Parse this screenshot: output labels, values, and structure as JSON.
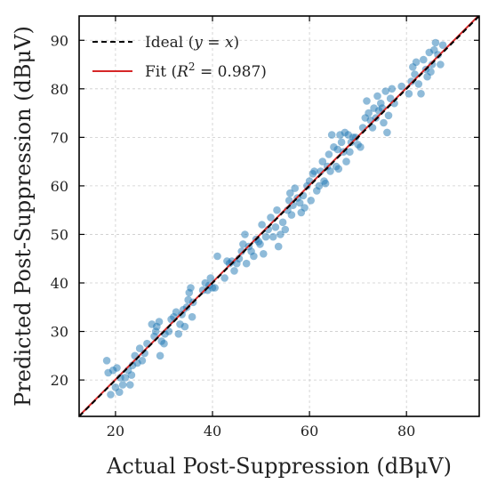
{
  "chart_data": {
    "type": "scatter",
    "xlabel": "Actual Post-Suppression (dBμV)",
    "ylabel": "Predicted Post-Suppression (dBμV)",
    "xlim": [
      12.5,
      95
    ],
    "ylim": [
      12.5,
      95
    ],
    "xticks": [
      20,
      40,
      60,
      80
    ],
    "yticks": [
      20,
      30,
      40,
      50,
      60,
      70,
      80,
      90
    ],
    "xtick_labels": [
      "20",
      "40",
      "60",
      "80"
    ],
    "ytick_labels": [
      "20",
      "30",
      "40",
      "50",
      "60",
      "70",
      "80",
      "90"
    ],
    "grid": true,
    "legend_position": "top-left",
    "legend": [
      {
        "label": "Ideal (y = x)",
        "style": "dashed",
        "color": "#000000"
      },
      {
        "label": "Fit (R² = 0.987)",
        "style": "solid",
        "color": "#d62728"
      }
    ],
    "ideal_line": {
      "x": [
        12.5,
        95
      ],
      "y": [
        12.5,
        95
      ],
      "color": "#000000"
    },
    "fit_line": {
      "x": [
        12.5,
        95
      ],
      "y": [
        12.6,
        95.2
      ],
      "color": "#d62728",
      "r_squared": 0.987
    },
    "point_color": "#1f77b4",
    "points": [
      [
        18.2,
        24.0
      ],
      [
        18.5,
        21.5
      ],
      [
        19.0,
        17.0
      ],
      [
        19.5,
        22.0
      ],
      [
        20.0,
        18.5
      ],
      [
        20.3,
        22.5
      ],
      [
        20.8,
        17.5
      ],
      [
        21.0,
        20.5
      ],
      [
        21.5,
        19.0
      ],
      [
        22.0,
        20.5
      ],
      [
        22.6,
        22.0
      ],
      [
        23.0,
        19.0
      ],
      [
        23.3,
        21.0
      ],
      [
        23.5,
        23.0
      ],
      [
        24.0,
        25.0
      ],
      [
        24.5,
        23.5
      ],
      [
        25.0,
        26.5
      ],
      [
        25.5,
        24.0
      ],
      [
        26.0,
        25.5
      ],
      [
        26.5,
        27.5
      ],
      [
        27.5,
        31.5
      ],
      [
        28.0,
        29.0
      ],
      [
        28.3,
        30.0
      ],
      [
        28.5,
        31.0
      ],
      [
        29.0,
        32.0
      ],
      [
        29.2,
        25.0
      ],
      [
        29.5,
        28.0
      ],
      [
        30.0,
        27.5
      ],
      [
        30.2,
        29.5
      ],
      [
        31.0,
        30.0
      ],
      [
        31.5,
        32.5
      ],
      [
        32.0,
        33.0
      ],
      [
        32.5,
        34.0
      ],
      [
        33.0,
        29.5
      ],
      [
        33.3,
        31.5
      ],
      [
        33.7,
        33.5
      ],
      [
        34.0,
        34.5
      ],
      [
        34.3,
        31.0
      ],
      [
        34.7,
        35.0
      ],
      [
        35.0,
        36.5
      ],
      [
        35.2,
        38.0
      ],
      [
        35.5,
        39.0
      ],
      [
        35.8,
        33.0
      ],
      [
        36.0,
        36.0
      ],
      [
        38.0,
        38.5
      ],
      [
        38.5,
        40.0
      ],
      [
        39.0,
        38.5
      ],
      [
        39.3,
        39.5
      ],
      [
        39.6,
        41.0
      ],
      [
        40.0,
        39.0
      ],
      [
        40.5,
        39.0
      ],
      [
        41.0,
        45.5
      ],
      [
        42.5,
        41.0
      ],
      [
        43.0,
        44.5
      ],
      [
        43.5,
        44.0
      ],
      [
        44.0,
        44.5
      ],
      [
        44.5,
        42.5
      ],
      [
        45.0,
        44.0
      ],
      [
        45.5,
        45.0
      ],
      [
        46.0,
        46.5
      ],
      [
        46.3,
        48.0
      ],
      [
        46.7,
        50.0
      ],
      [
        47.0,
        44.0
      ],
      [
        47.5,
        47.5
      ],
      [
        48.0,
        46.5
      ],
      [
        48.5,
        45.5
      ],
      [
        49.0,
        49.0
      ],
      [
        49.5,
        48.5
      ],
      [
        49.8,
        48.0
      ],
      [
        50.2,
        52.0
      ],
      [
        50.5,
        46.0
      ],
      [
        51.0,
        49.5
      ],
      [
        51.5,
        51.0
      ],
      [
        52.0,
        53.5
      ],
      [
        52.5,
        49.5
      ],
      [
        53.0,
        51.5
      ],
      [
        53.3,
        55.0
      ],
      [
        53.6,
        47.5
      ],
      [
        54.0,
        50.0
      ],
      [
        54.5,
        52.5
      ],
      [
        55.0,
        51.0
      ],
      [
        55.5,
        55.0
      ],
      [
        55.8,
        57.0
      ],
      [
        56.0,
        58.5
      ],
      [
        56.3,
        54.0
      ],
      [
        56.6,
        56.0
      ],
      [
        57.0,
        59.5
      ],
      [
        57.5,
        57.5
      ],
      [
        58.0,
        56.5
      ],
      [
        58.3,
        54.5
      ],
      [
        58.7,
        58.0
      ],
      [
        59.0,
        55.5
      ],
      [
        59.5,
        60.0
      ],
      [
        60.0,
        61.0
      ],
      [
        60.3,
        57.0
      ],
      [
        60.7,
        62.5
      ],
      [
        61.0,
        63.0
      ],
      [
        61.5,
        59.0
      ],
      [
        62.0,
        60.0
      ],
      [
        62.3,
        63.0
      ],
      [
        62.7,
        65.0
      ],
      [
        63.0,
        61.0
      ],
      [
        63.3,
        60.5
      ],
      [
        63.7,
        64.0
      ],
      [
        64.0,
        66.5
      ],
      [
        64.3,
        63.0
      ],
      [
        64.6,
        70.5
      ],
      [
        65.0,
        68.0
      ],
      [
        65.5,
        64.0
      ],
      [
        65.8,
        67.5
      ],
      [
        66.0,
        63.5
      ],
      [
        66.3,
        70.5
      ],
      [
        66.6,
        69.0
      ],
      [
        67.0,
        67.0
      ],
      [
        67.3,
        71.0
      ],
      [
        67.6,
        65.0
      ],
      [
        68.0,
        70.5
      ],
      [
        68.3,
        67.0
      ],
      [
        68.6,
        69.0
      ],
      [
        69.0,
        70.0
      ],
      [
        69.5,
        70.0
      ],
      [
        70.0,
        68.5
      ],
      [
        70.5,
        68.0
      ],
      [
        71.0,
        72.0
      ],
      [
        71.5,
        74.0
      ],
      [
        71.8,
        77.5
      ],
      [
        72.2,
        75.0
      ],
      [
        72.6,
        73.5
      ],
      [
        73.0,
        72.0
      ],
      [
        73.3,
        76.0
      ],
      [
        73.7,
        74.0
      ],
      [
        74.0,
        78.5
      ],
      [
        74.3,
        75.5
      ],
      [
        74.7,
        77.0
      ],
      [
        75.0,
        76.0
      ],
      [
        75.3,
        73.0
      ],
      [
        75.7,
        79.5
      ],
      [
        76.0,
        71.0
      ],
      [
        76.3,
        74.5
      ],
      [
        76.7,
        78.0
      ],
      [
        77.0,
        80.0
      ],
      [
        77.5,
        77.0
      ],
      [
        79.0,
        80.5
      ],
      [
        80.5,
        79.0
      ],
      [
        81.0,
        81.5
      ],
      [
        81.3,
        84.5
      ],
      [
        81.7,
        83.0
      ],
      [
        82.0,
        85.5
      ],
      [
        82.5,
        81.0
      ],
      [
        83.0,
        79.0
      ],
      [
        83.5,
        86.0
      ],
      [
        84.0,
        84.0
      ],
      [
        84.3,
        82.5
      ],
      [
        84.7,
        87.5
      ],
      [
        85.0,
        83.5
      ],
      [
        85.3,
        85.0
      ],
      [
        85.7,
        88.0
      ],
      [
        86.0,
        89.5
      ],
      [
        86.5,
        87.0
      ],
      [
        87.0,
        85.0
      ],
      [
        87.5,
        89.0
      ]
    ]
  }
}
